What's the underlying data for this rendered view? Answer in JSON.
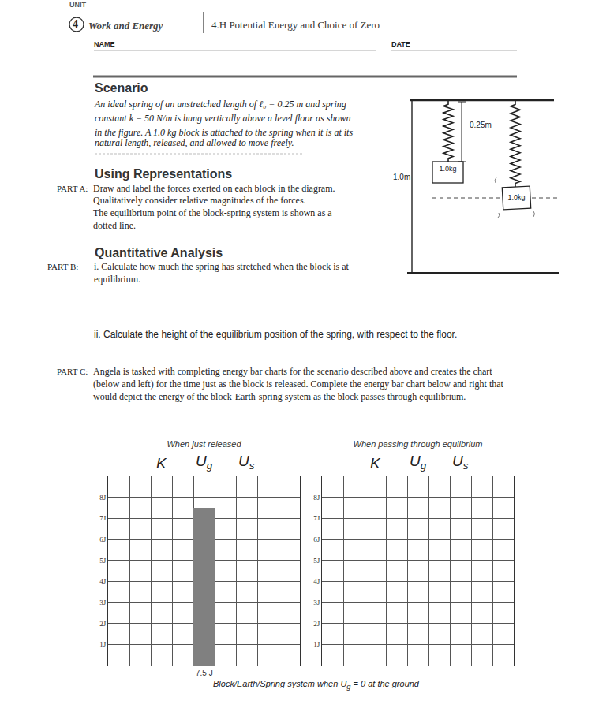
{
  "header": {
    "unit": "UNIT",
    "unit_number": "4",
    "unit_title": "Work and Energy",
    "lesson": "4.H Potential Energy and Choice of Zero",
    "name_label": "NAME",
    "date_label": "DATE"
  },
  "scenario": {
    "heading": "Scenario",
    "lines": [
      "An ideal spring of an unstretched length of ℓ₀ = 0.25 m and spring",
      "constant k = 50 N/m is hung vertically above a level floor as shown",
      "in the figure. A 1.0 kg block is attached to the spring when it is at its",
      "natural length, released, and allowed to move freely."
    ]
  },
  "part_a": {
    "heading": "Using Representations",
    "label": "PART A:",
    "lines": [
      "Draw and label the forces exerted on each block in the diagram.",
      "Qualitatively consider relative magnitudes of the forces.",
      "The equilibrium point of the block-spring system is shown as a",
      "dotted line."
    ]
  },
  "part_b": {
    "heading": "Quantitative Analysis",
    "label": "PART B:",
    "items": [
      [
        "i. Calculate how much the spring has stretched when the block is at",
        "equilibrium."
      ],
      [
        "ii. Calculate the height of the equilibrium position of the spring, with respect to the floor."
      ]
    ]
  },
  "part_c": {
    "label": "PART C:",
    "lines": [
      "Angela is tasked with completing energy bar charts for the scenario described above and creates the chart",
      "(below and left) for the time just as the block is released. Complete the energy bar chart below and right that",
      "would depict the energy of the block-Earth-spring system as the block passes through equilibrium."
    ]
  },
  "diagram": {
    "spring_length_label": "0.25m",
    "height_label": "1.0m",
    "block_labels": [
      "1.0kg",
      "1.0kg"
    ]
  },
  "caption": "Block/Earth/Spring system when Ug = 0 at the ground",
  "chart_data": [
    {
      "type": "bar",
      "title": "When just released",
      "categories": [
        "K",
        "Ug",
        "Us"
      ],
      "values": [
        0,
        7.5,
        0
      ],
      "value_labels": [
        null,
        "7.5 J",
        null
      ],
      "data_labels": true,
      "color": "#808080",
      "ylim": [
        0,
        9
      ],
      "yticks": [
        {
          "value": 1,
          "label": "1J"
        },
        {
          "value": 2,
          "label": "2J"
        },
        {
          "value": 3,
          "label": "3J"
        },
        {
          "value": 4,
          "label": "4J"
        },
        {
          "value": 5,
          "label": "5J"
        },
        {
          "value": 6,
          "label": "6J"
        },
        {
          "value": 7,
          "label": "7J"
        },
        {
          "value": 8,
          "label": "8J"
        }
      ],
      "grid": true
    },
    {
      "type": "bar",
      "title": "When passing through equlibrium",
      "categories": [
        "K",
        "Ug",
        "Us"
      ],
      "values": [
        null,
        null,
        null
      ],
      "color": "#808080",
      "ylim": [
        0,
        9
      ],
      "yticks": [
        {
          "value": 1,
          "label": "1J"
        },
        {
          "value": 2,
          "label": "2J"
        },
        {
          "value": 3,
          "label": "3J"
        },
        {
          "value": 4,
          "label": "4J"
        },
        {
          "value": 5,
          "label": "5J"
        },
        {
          "value": 6,
          "label": "6J"
        },
        {
          "value": 7,
          "label": "7J"
        },
        {
          "value": 8,
          "label": "8J"
        }
      ],
      "grid": true
    }
  ]
}
